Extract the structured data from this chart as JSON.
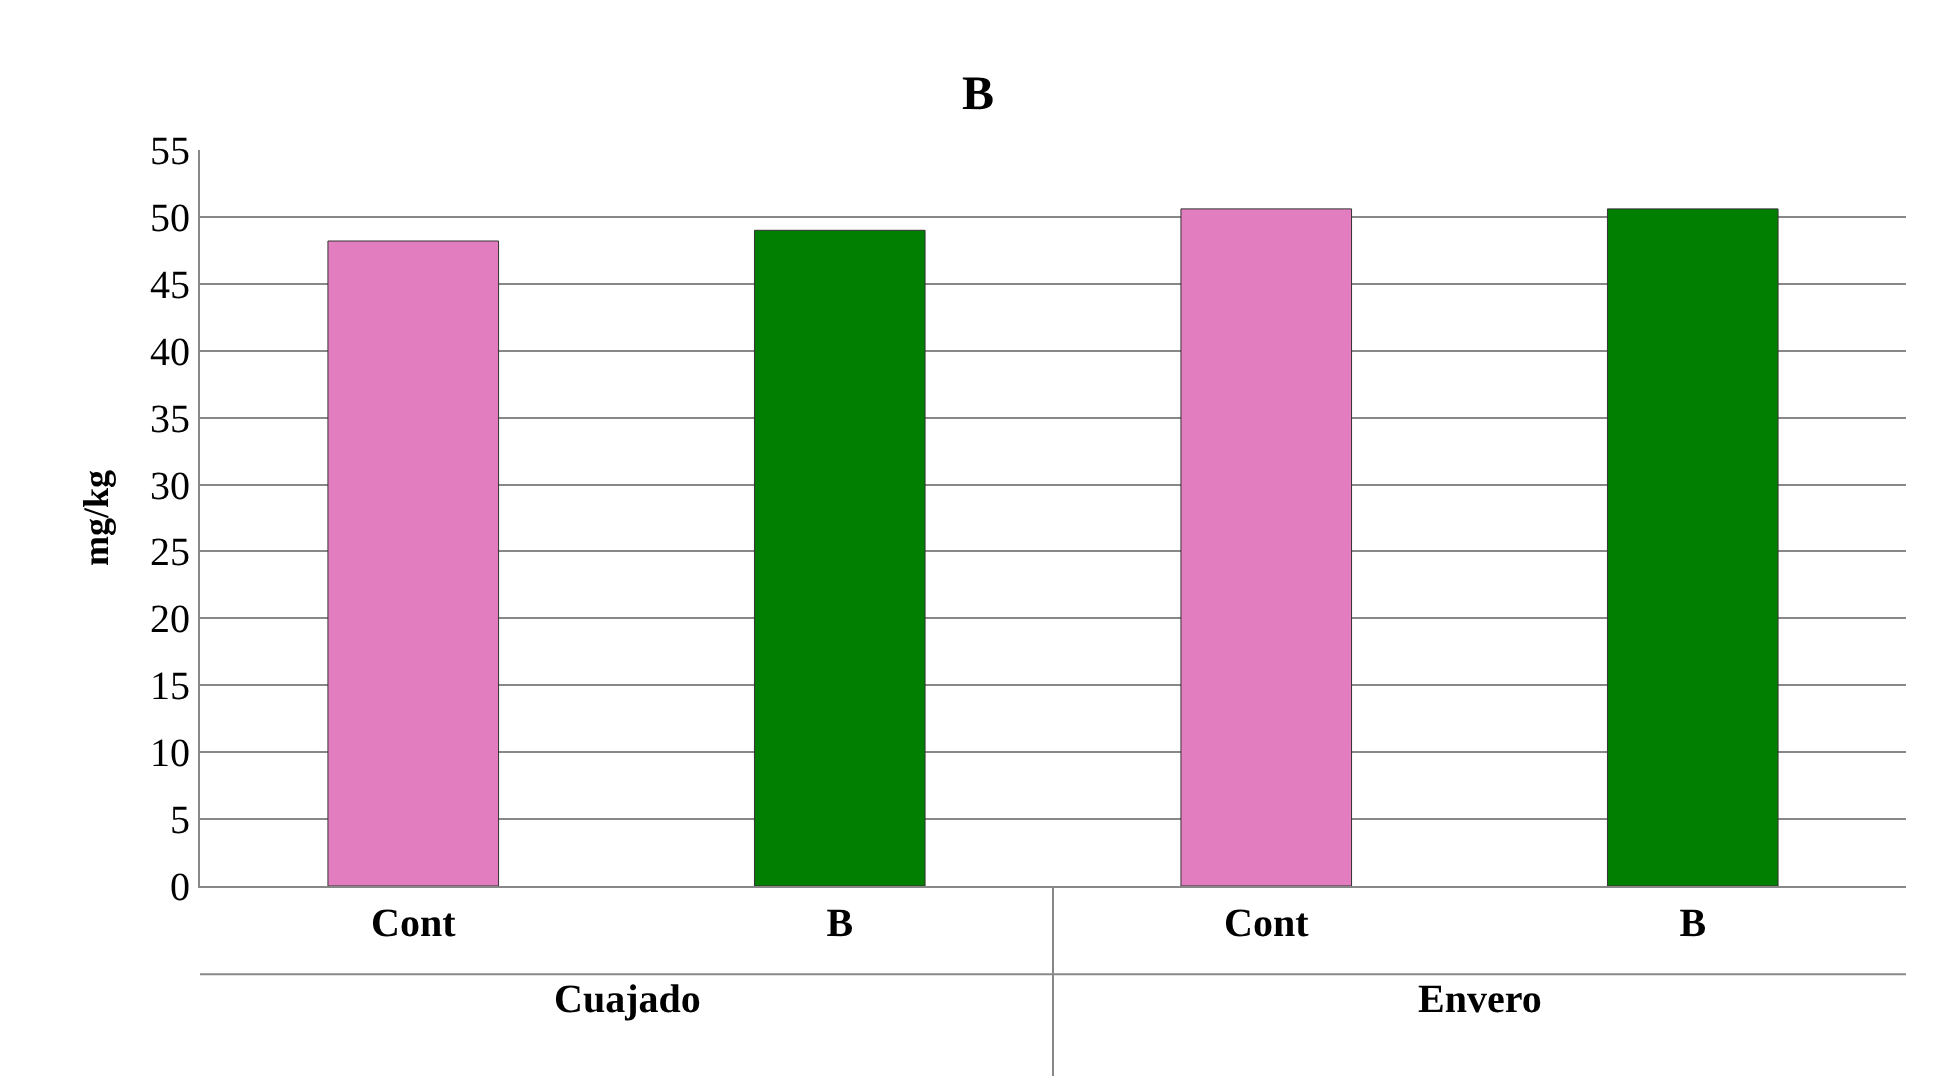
{
  "chart_data": {
    "type": "bar",
    "title": "B",
    "ylabel": "mg/kg",
    "categories": [
      "Cont",
      "B",
      "Cont",
      "B"
    ],
    "values": [
      48.2,
      49.0,
      50.6,
      50.6
    ],
    "colors": [
      "#e27dbf",
      "#007f00",
      "#e27dbf",
      "#007f00"
    ],
    "ylim": [
      0,
      55
    ],
    "yticks": [
      0,
      5,
      10,
      15,
      20,
      25,
      30,
      35,
      40,
      45,
      50,
      55
    ],
    "grid": "y",
    "annotations": [
      "Cuajado",
      "Envero"
    ]
  }
}
